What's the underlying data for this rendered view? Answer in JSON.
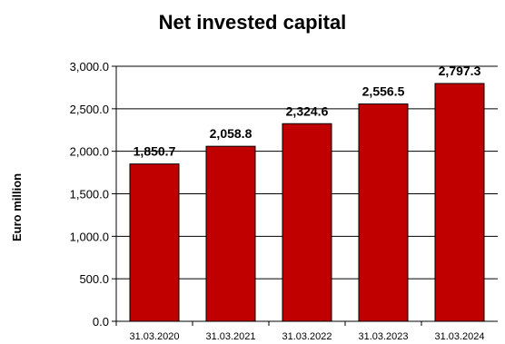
{
  "chart_data": {
    "type": "bar",
    "title": "Net invested capital",
    "ylabel": "Euro million",
    "xlabel": "",
    "categories": [
      "31.03.2020",
      "31.03.2021",
      "31.03.2022",
      "31.03.2023",
      "31.03.2024"
    ],
    "values": [
      1850.7,
      2058.8,
      2324.6,
      2556.5,
      2797.3
    ],
    "value_labels": [
      "1,850.7",
      "2,058.8",
      "2,324.6",
      "2,556.5",
      "2,797.3"
    ],
    "ylim": [
      0,
      3000
    ],
    "yticks": [
      0,
      500,
      1000,
      1500,
      2000,
      2500,
      3000
    ],
    "ytick_labels": [
      "0.0",
      "500.0",
      "1,000.0",
      "1,500.0",
      "2,000.0",
      "2,500.0",
      "3,000.0"
    ],
    "bar_color": "#c00000",
    "grid": true,
    "legend": "none"
  }
}
